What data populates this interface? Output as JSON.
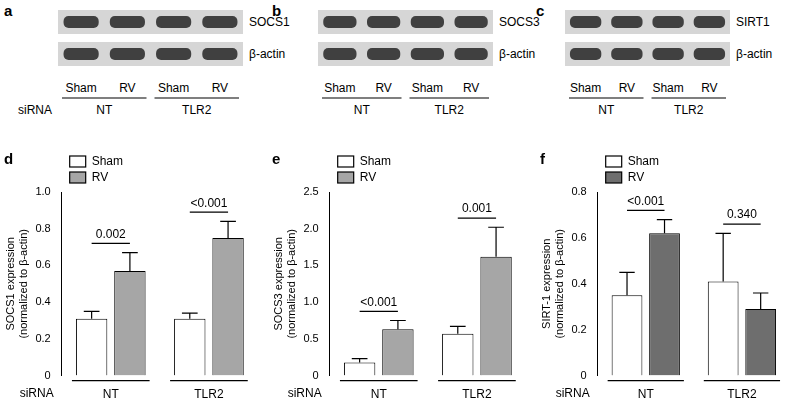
{
  "blots": [
    {
      "panel": "a",
      "bands": [
        "SOCS1",
        "β-actin"
      ],
      "lanes": [
        "Sham",
        "RV",
        "Sham",
        "RV"
      ],
      "groups": [
        "NT",
        "TLR2"
      ],
      "row_label": "siRNA"
    },
    {
      "panel": "b",
      "bands": [
        "SOCS3",
        "β-actin"
      ],
      "lanes": [
        "Sham",
        "RV",
        "Sham",
        "RV"
      ],
      "groups": [
        "NT",
        "TLR2"
      ]
    },
    {
      "panel": "c",
      "bands": [
        "SIRT1",
        "β-actin"
      ],
      "lanes": [
        "Sham",
        "RV",
        "Sham",
        "RV"
      ],
      "groups": [
        "NT",
        "TLR2"
      ]
    }
  ],
  "chart_data": [
    {
      "panel": "d",
      "type": "bar",
      "categories": [
        "NT",
        "TLR2"
      ],
      "x_label": "siRNA",
      "y_label": [
        "SOCS1 expression",
        "(normalized to β-actin)"
      ],
      "ylim": [
        0,
        1
      ],
      "yticks": [
        0,
        0.2,
        0.4,
        0.6,
        0.8,
        {
          "value": 1,
          "label": "1.0"
        }
      ],
      "grid": false,
      "legend": "top-left",
      "series": [
        {
          "name": "Sham",
          "color": "#ffffff",
          "values": [
            0.31,
            0.31
          ],
          "errors": [
            0.04,
            0.03
          ]
        },
        {
          "name": "RV",
          "color": "#a6a6a6",
          "values": [
            0.57,
            0.75
          ],
          "errors": [
            0.1,
            0.09
          ]
        }
      ],
      "annotations": [
        {
          "category": "NT",
          "text": "0.002"
        },
        {
          "category": "TLR2",
          "text": "<0.001"
        }
      ]
    },
    {
      "panel": "e",
      "type": "bar",
      "categories": [
        "NT",
        "TLR2"
      ],
      "x_label": "siRNA",
      "y_label": [
        "SOCS3 expression",
        "(normalized to β-actin)"
      ],
      "ylim": [
        0,
        2.5
      ],
      "yticks": [
        0,
        0.5,
        {
          "value": 1,
          "label": "1.0"
        },
        1.5,
        {
          "value": 2,
          "label": "2.0"
        },
        2.5
      ],
      "grid": false,
      "legend": "top-left",
      "series": [
        {
          "name": "Sham",
          "color": "#ffffff",
          "values": [
            0.18,
            0.57
          ],
          "errors": [
            0.05,
            0.1
          ]
        },
        {
          "name": "RV",
          "color": "#a6a6a6",
          "values": [
            0.63,
            1.62
          ],
          "errors": [
            0.12,
            0.4
          ]
        }
      ],
      "annotations": [
        {
          "category": "NT",
          "text": "<0.001"
        },
        {
          "category": "TLR2",
          "text": "0.001"
        }
      ]
    },
    {
      "panel": "f",
      "type": "bar",
      "categories": [
        "NT",
        "TLR2"
      ],
      "x_label": "siRNA",
      "y_label": [
        "SIRT-1 expression",
        "(normalized to β-actin)"
      ],
      "ylim": [
        0,
        0.8
      ],
      "yticks": [
        0,
        0.2,
        0.4,
        0.6,
        0.8
      ],
      "grid": false,
      "legend": "top-left",
      "series": [
        {
          "name": "Sham",
          "color": "#ffffff",
          "values": [
            0.35,
            0.41
          ],
          "errors": [
            0.1,
            0.21
          ]
        },
        {
          "name": "RV",
          "color": "#6e6e6e",
          "values": [
            0.62,
            0.29
          ],
          "errors": [
            0.06,
            0.07
          ]
        }
      ],
      "annotations": [
        {
          "category": "NT",
          "text": "<0.001"
        },
        {
          "category": "TLR2",
          "text": "0.340"
        }
      ]
    }
  ]
}
